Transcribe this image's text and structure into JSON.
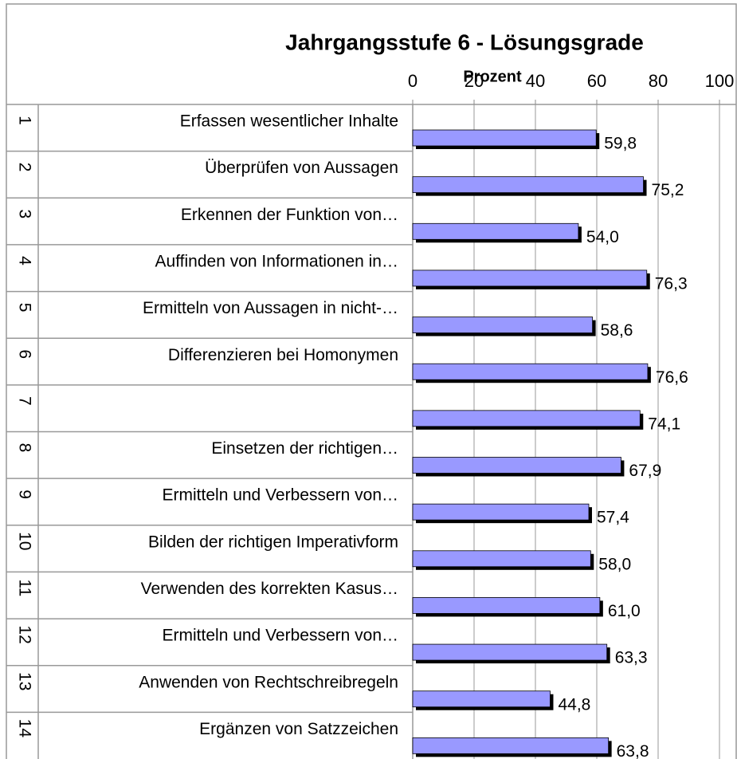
{
  "chart_data": {
    "type": "bar",
    "orientation": "horizontal",
    "title": "Jahrgangsstufe 6 - Lösungsgrade",
    "x_label": "Prozent",
    "row_numbers": [
      1,
      2,
      3,
      4,
      5,
      6,
      7,
      8,
      9,
      10,
      11,
      12,
      13,
      14
    ],
    "categories": [
      "Erfassen wesentlicher Inhalte",
      "Überprüfen von Aussagen",
      "Erkennen der Funktion von…",
      "Auffinden von Informationen in…",
      "Ermitteln von Aussagen in nicht-…",
      "Differenzieren bei Homonymen",
      null,
      "Einsetzen der richtigen…",
      "Ermitteln und Verbessern von…",
      "Bilden der richtigen Imperativform",
      "Verwenden des korrekten Kasus…",
      "Ermitteln und Verbessern von…",
      "Anwenden von Rechtschreibregeln",
      "Ergänzen von Satzzeichen"
    ],
    "values": [
      59.8,
      75.2,
      54.0,
      76.3,
      58.6,
      76.6,
      74.1,
      67.9,
      57.4,
      58.0,
      61.0,
      63.3,
      44.8,
      63.8
    ],
    "value_labels": [
      "59,8",
      "75,2",
      "54,0",
      "76,3",
      "58,6",
      "76,6",
      "74,1",
      "67,9",
      "57,4",
      "58,0",
      "61,0",
      "63,3",
      "44,8",
      "63,8"
    ],
    "color": "#9999ff",
    "xlim": [
      0,
      100
    ],
    "xticks": [
      0,
      20,
      40,
      60,
      80,
      100
    ],
    "grid": true
  }
}
